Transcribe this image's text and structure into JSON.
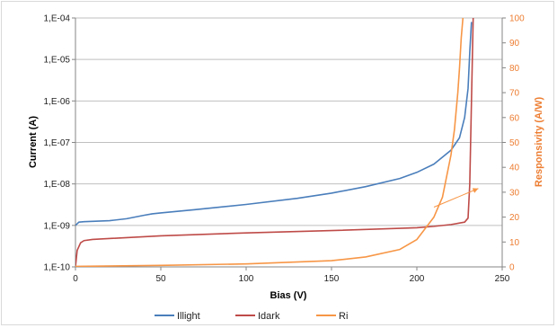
{
  "chart_data": {
    "type": "line",
    "title": "",
    "xlabel": "Bias (V)",
    "ylabel": "Current (A)",
    "y2label": "Responsivity (A/W)",
    "xlim": [
      0,
      250
    ],
    "ylim_log10": [
      -10,
      -4
    ],
    "y2lim": [
      0,
      100
    ],
    "x_ticks": [
      "0",
      "50",
      "100",
      "150",
      "200",
      "250"
    ],
    "y_ticks": [
      "1,E-04",
      "1,E-05",
      "1,E-06",
      "1,E-07",
      "1,E-08",
      "1,E-09",
      "1,E-10"
    ],
    "y2_ticks": [
      "100",
      "90",
      "80",
      "70",
      "60",
      "50",
      "40",
      "30",
      "20",
      "10",
      "0"
    ],
    "grid": "horizontal",
    "legend_position": "bottom",
    "scale_left": "log",
    "scale_right": "linear",
    "series": [
      {
        "name": "Illight",
        "axis": "left",
        "color": "#4a7ebb",
        "x": [
          0,
          2,
          5,
          10,
          20,
          30,
          40,
          45,
          50,
          70,
          100,
          130,
          150,
          170,
          190,
          200,
          210,
          220,
          225,
          228,
          230,
          231,
          232
        ],
        "y": [
          1e-09,
          1.2e-09,
          1.23e-09,
          1.25e-09,
          1.3e-09,
          1.45e-09,
          1.75e-09,
          1.9e-09,
          2e-09,
          2.4e-09,
          3.2e-09,
          4.5e-09,
          6e-09,
          8.6e-09,
          1.35e-08,
          1.9e-08,
          3e-08,
          6.5e-08,
          1.3e-07,
          4e-07,
          2e-06,
          1.5e-05,
          8e-05
        ]
      },
      {
        "name": "Idark",
        "axis": "left",
        "color": "#be4b48",
        "x": [
          0,
          1,
          3,
          5,
          10,
          50,
          100,
          150,
          200,
          210,
          220,
          228,
          230,
          231,
          232,
          233
        ],
        "y": [
          1e-10,
          2.5e-10,
          3.8e-10,
          4.3e-10,
          4.6e-10,
          5.6e-10,
          6.6e-10,
          7.5e-10,
          8.8e-10,
          9.5e-10,
          1.05e-09,
          1.2e-09,
          1.5e-09,
          1e-08,
          1e-06,
          0.0001
        ]
      },
      {
        "name": "Ri",
        "axis": "right",
        "color": "#f79646",
        "x": [
          0,
          50,
          100,
          150,
          170,
          190,
          200,
          210,
          215,
          220,
          222,
          224,
          225,
          226,
          227
        ],
        "y": [
          0.2,
          0.6,
          1.2,
          2.5,
          4.0,
          7.0,
          11.0,
          20.0,
          28.0,
          45.0,
          55.0,
          70.0,
          80.0,
          92.0,
          100.0
        ]
      }
    ]
  }
}
